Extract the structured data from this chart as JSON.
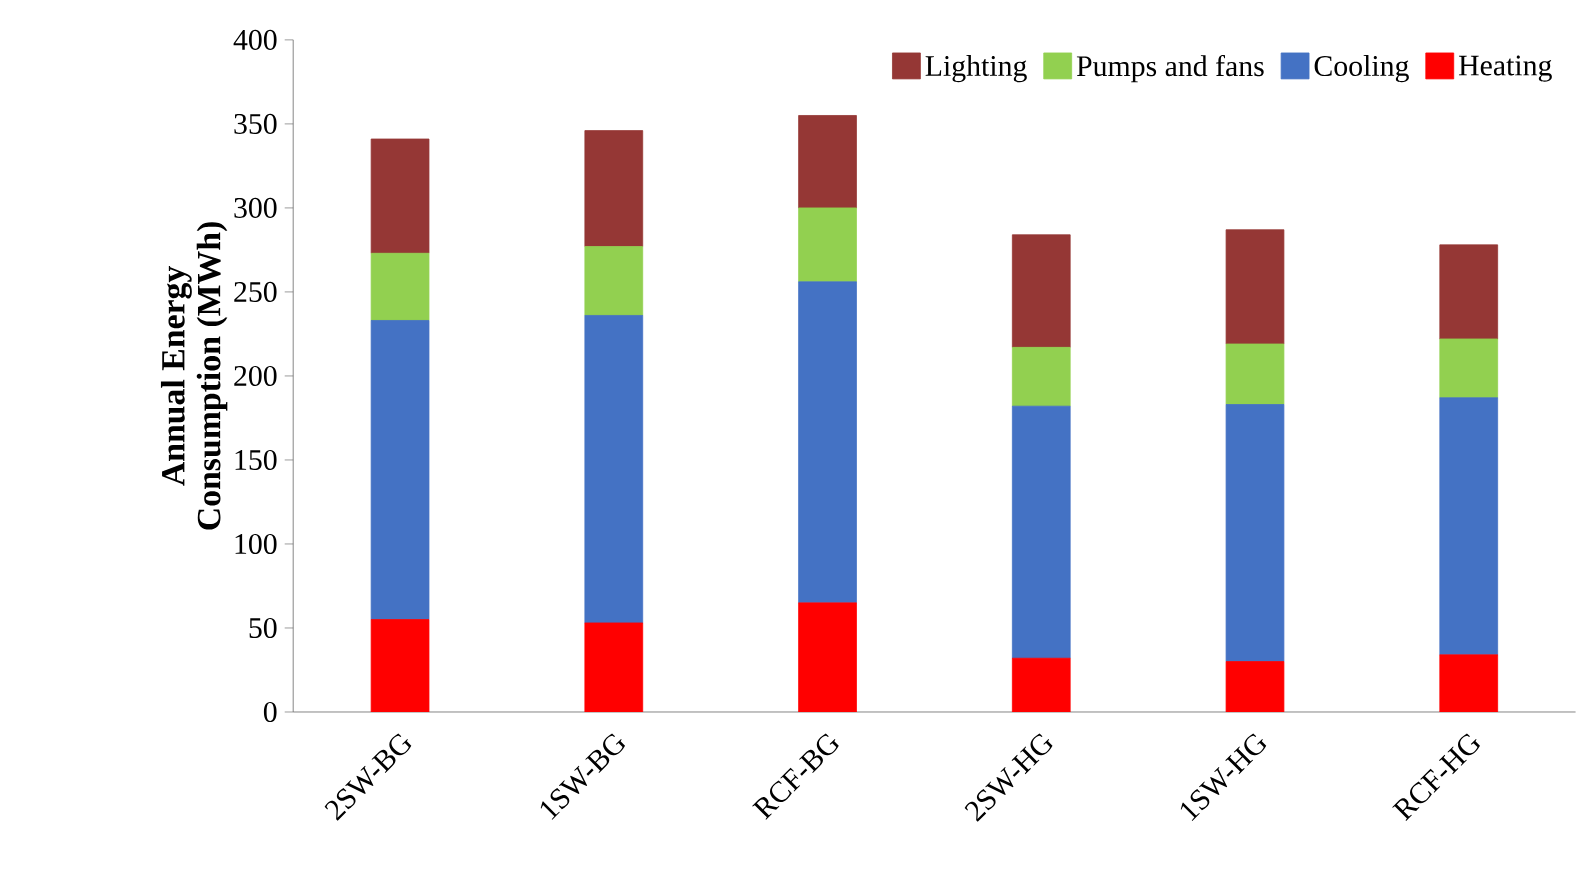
{
  "chart_data": {
    "type": "bar",
    "stacked": true,
    "ylabel": "Annual Energy Consumption (MWh)",
    "categories": [
      "2SW-BG",
      "1SW-BG",
      "RCF-BG",
      "2SW-HG",
      "1SW-HG",
      "RCF-HG"
    ],
    "series": [
      {
        "name": "Heating",
        "color": "#ff0000",
        "values": [
          55,
          53,
          65,
          32,
          30,
          34
        ]
      },
      {
        "name": "Cooling",
        "color": "#4472c4",
        "values": [
          178,
          183,
          191,
          150,
          153,
          153
        ]
      },
      {
        "name": "Pumps and fans",
        "color": "#92d050",
        "values": [
          40,
          41,
          44,
          35,
          36,
          35
        ]
      },
      {
        "name": "Lighting",
        "color": "#953735",
        "values": [
          68,
          69,
          55,
          67,
          68,
          56
        ]
      }
    ],
    "ylim": [
      0,
      400
    ],
    "yticks": [
      0,
      50,
      100,
      150,
      200,
      250,
      300,
      350,
      400
    ],
    "legend": "top",
    "grid": false
  }
}
